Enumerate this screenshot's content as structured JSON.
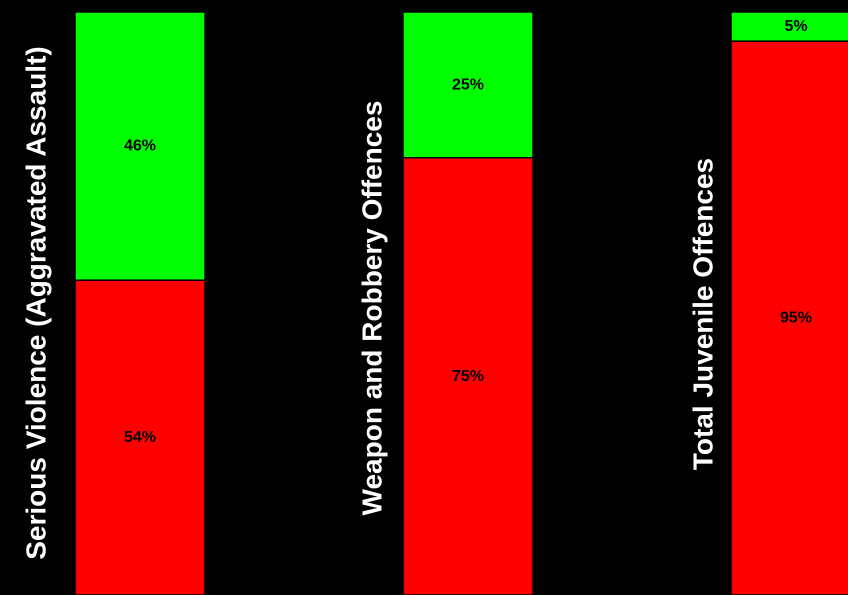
{
  "chart_data": {
    "type": "bar",
    "stacked": true,
    "orientation": "vertical",
    "normalized_percent": true,
    "ylim": [
      0,
      100
    ],
    "categories": [
      "Serious Violence (Aggravated Assault)",
      "Weapon and Robbery Offences",
      "Total Juvenile Offences"
    ],
    "series": [
      {
        "values": [
          54,
          75,
          95
        ],
        "labels": [
          "54%",
          "75%",
          "95%"
        ],
        "color": "#ff0000"
      },
      {
        "values": [
          46,
          25,
          5
        ],
        "labels": [
          "46%",
          "25%",
          "5%"
        ],
        "color": "#00ff00"
      }
    ],
    "title": "",
    "xlabel": "",
    "ylabel": "",
    "grid": false,
    "legend": "none",
    "background": "#000000"
  }
}
